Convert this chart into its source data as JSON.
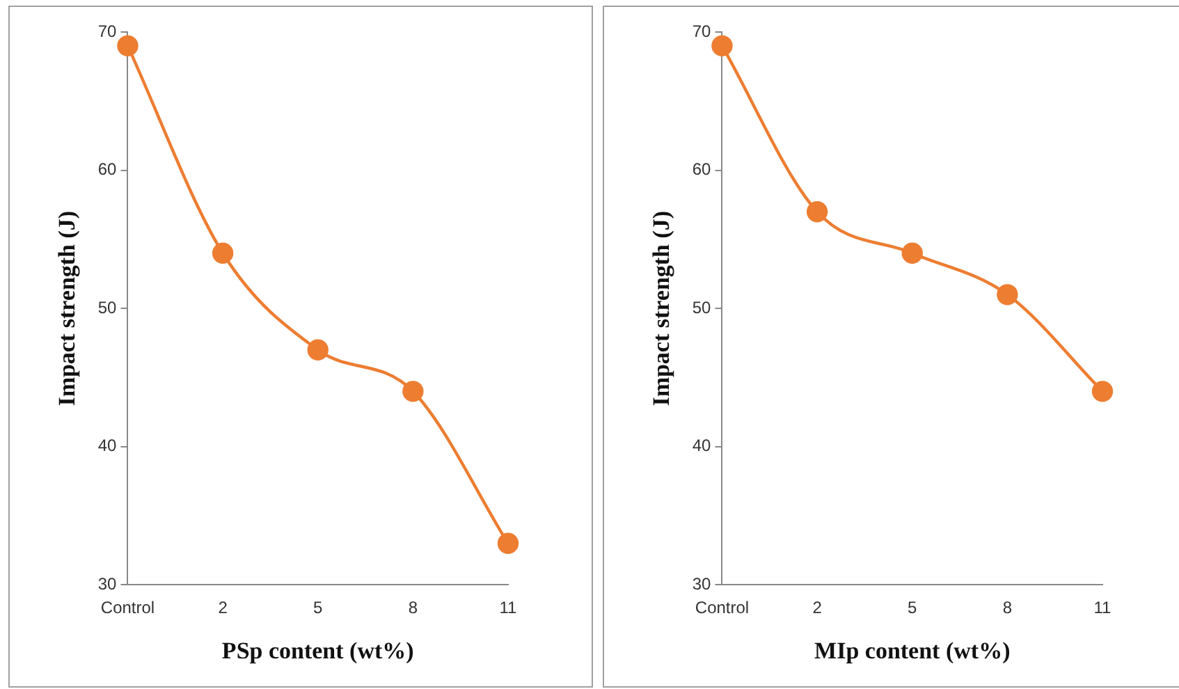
{
  "chart_data": [
    {
      "type": "line",
      "xlabel": "PSp content (wt%)",
      "ylabel": "Impact strength (J)",
      "categories": [
        "Control",
        "2",
        "5",
        "8",
        "11"
      ],
      "series": [
        {
          "color": "#ed7d31",
          "values": [
            69,
            54,
            47,
            44,
            33
          ]
        }
      ],
      "ylim": [
        30,
        70
      ],
      "yticks": [
        30,
        40,
        50,
        60,
        70
      ],
      "grid": false,
      "legend": false,
      "marker": "circle",
      "line_style": "solid"
    },
    {
      "type": "line",
      "xlabel": "MIp content (wt%)",
      "ylabel": "Impact strength (J)",
      "categories": [
        "Control",
        "2",
        "5",
        "8",
        "11"
      ],
      "series": [
        {
          "color": "#ed7d31",
          "values": [
            69,
            57,
            54,
            51,
            44
          ]
        }
      ],
      "ylim": [
        30,
        70
      ],
      "yticks": [
        30,
        40,
        50,
        60,
        70
      ],
      "grid": false,
      "legend": false,
      "marker": "circle",
      "line_style": "solid"
    }
  ]
}
